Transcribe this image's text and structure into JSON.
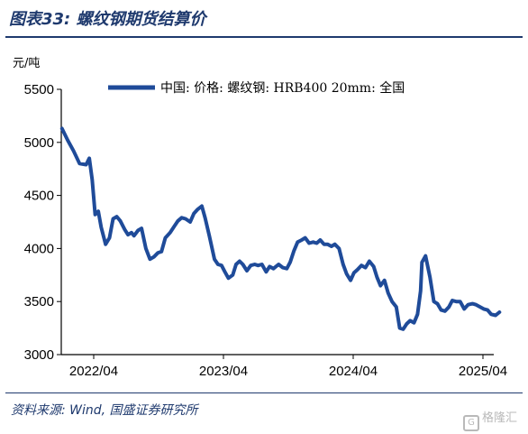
{
  "header": {
    "figure_label": "图表33:",
    "title": "螺纹钢期货结算价"
  },
  "footer": {
    "source": "资料来源: Wind, 国盛证券研究所",
    "watermark": "格隆汇"
  },
  "chart_data": {
    "type": "line",
    "title": "",
    "ylabel": "元/吨",
    "xlabel": "",
    "ylim": [
      3000,
      5500
    ],
    "yticks": [
      3000,
      3500,
      4000,
      4500,
      5000,
      5500
    ],
    "xlim": [
      "2022-01",
      "2025-05"
    ],
    "xticks": [
      "2022/04",
      "2023/04",
      "2024/04",
      "2025/04"
    ],
    "grid": false,
    "legend_position": "top",
    "line_color": "#1f4b99",
    "series": [
      {
        "name": "中国: 价格: 螺纹钢: HRB400 20mm: 全国",
        "x_unit": "month",
        "x_start": "2022-01",
        "x": [
          "2022-01-03",
          "2022-01-19",
          "2022-02-05",
          "2022-02-22",
          "2022-03-10",
          "2022-03-19",
          "2022-03-27",
          "2022-04-05",
          "2022-04-14",
          "2022-04-22",
          "2022-05-04",
          "2022-05-15",
          "2022-05-25",
          "2022-06-05",
          "2022-06-15",
          "2022-06-27",
          "2022-07-06",
          "2022-07-16",
          "2022-07-23",
          "2022-08-04",
          "2022-08-14",
          "2022-08-26",
          "2022-09-07",
          "2022-09-18",
          "2022-09-30",
          "2022-10-09",
          "2022-10-20",
          "2022-11-03",
          "2022-11-15",
          "2022-11-25",
          "2022-12-05",
          "2022-12-16",
          "2022-12-29",
          "2023-01-09",
          "2023-01-20",
          "2023-02-01",
          "2023-02-10",
          "2023-02-22",
          "2023-03-06",
          "2023-03-16",
          "2023-03-26",
          "2023-04-05",
          "2023-04-15",
          "2023-04-27",
          "2023-05-06",
          "2023-05-16",
          "2023-05-25",
          "2023-06-06",
          "2023-06-17",
          "2023-06-28",
          "2023-07-07",
          "2023-07-18",
          "2023-07-30",
          "2023-08-09",
          "2023-08-20",
          "2023-09-04",
          "2023-09-16",
          "2023-09-27",
          "2023-10-06",
          "2023-10-17",
          "2023-10-27",
          "2023-11-08",
          "2023-11-18",
          "2023-11-29",
          "2023-12-10",
          "2023-12-20",
          "2023-12-30",
          "2024-01-10",
          "2024-01-20",
          "2024-01-31",
          "2024-02-10",
          "2024-02-22",
          "2024-03-03",
          "2024-03-13",
          "2024-03-24",
          "2024-04-03",
          "2024-04-13",
          "2024-04-24",
          "2024-05-05",
          "2024-05-16",
          "2024-05-28",
          "2024-06-07",
          "2024-06-17",
          "2024-06-28",
          "2024-07-08",
          "2024-07-19",
          "2024-07-31",
          "2024-08-10",
          "2024-08-20",
          "2024-08-30",
          "2024-09-09",
          "2024-09-20",
          "2024-09-30",
          "2024-10-08",
          "2024-10-12",
          "2024-10-22",
          "2024-11-04",
          "2024-11-15",
          "2024-11-25",
          "2024-12-05",
          "2024-12-16",
          "2024-12-27",
          "2025-01-06",
          "2025-01-17",
          "2025-01-28",
          "2025-02-09",
          "2025-02-20",
          "2025-03-02",
          "2025-03-12",
          "2025-03-23",
          "2025-04-03",
          "2025-04-14",
          "2025-04-24",
          "2025-05-06",
          "2025-05-17"
        ],
        "values": [
          5130,
          5020,
          4920,
          4800,
          4790,
          4850,
          4650,
          4320,
          4350,
          4200,
          4040,
          4100,
          4280,
          4300,
          4260,
          4180,
          4130,
          4150,
          4120,
          4170,
          4190,
          4000,
          3900,
          3920,
          3960,
          3970,
          4100,
          4150,
          4210,
          4260,
          4290,
          4280,
          4250,
          4330,
          4370,
          4400,
          4290,
          4120,
          3900,
          3850,
          3840,
          3780,
          3720,
          3750,
          3850,
          3880,
          3850,
          3790,
          3840,
          3850,
          3840,
          3850,
          3780,
          3830,
          3810,
          3850,
          3820,
          3810,
          3870,
          3980,
          4060,
          4080,
          4100,
          4050,
          4060,
          4050,
          4080,
          4040,
          4040,
          4020,
          4040,
          4000,
          3850,
          3760,
          3700,
          3770,
          3800,
          3840,
          3820,
          3880,
          3830,
          3730,
          3650,
          3700,
          3580,
          3500,
          3450,
          3250,
          3240,
          3290,
          3320,
          3300,
          3380,
          3600,
          3870,
          3930,
          3730,
          3500,
          3480,
          3420,
          3410,
          3450,
          3510,
          3500,
          3500,
          3430,
          3470,
          3480,
          3470,
          3450,
          3430,
          3420,
          3380,
          3370,
          3400
        ]
      }
    ]
  }
}
